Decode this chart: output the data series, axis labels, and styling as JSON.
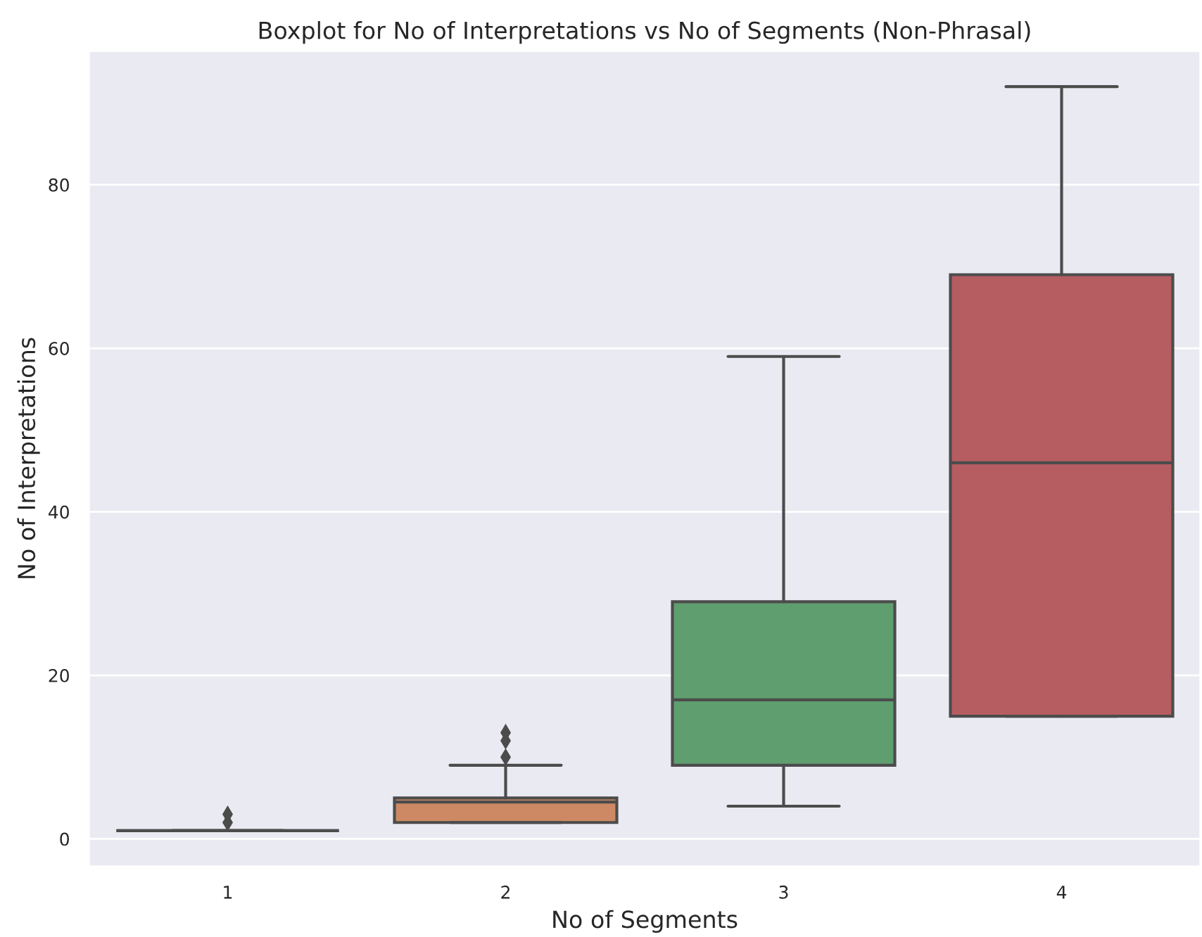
{
  "chart_data": {
    "type": "box",
    "title": "Boxplot for No of Interpretations vs No of Segments (Non-Phrasal)",
    "xlabel": "No of Segments",
    "ylabel": "No of Interpretations",
    "categories": [
      "1",
      "2",
      "3",
      "4"
    ],
    "colors": [
      "#4c4c4c",
      "#cc8963",
      "#5f9e6e",
      "#b55d60"
    ],
    "boxes": [
      {
        "low": 1,
        "q1": 1,
        "median": 1,
        "q3": 1,
        "high": 1,
        "outliers": [
          2,
          3
        ]
      },
      {
        "low": 2,
        "q1": 2,
        "median": 4.5,
        "q3": 5,
        "high": 9,
        "outliers": [
          10,
          12,
          13
        ]
      },
      {
        "low": 4,
        "q1": 9,
        "median": 17,
        "q3": 29,
        "high": 59
      },
      {
        "low": 15,
        "q1": 15,
        "median": 46,
        "q3": 69,
        "high": 92
      }
    ],
    "ylim": [
      -3.4,
      96.4
    ],
    "yticks": [
      0,
      20,
      40,
      60,
      80
    ],
    "grid": "y"
  }
}
